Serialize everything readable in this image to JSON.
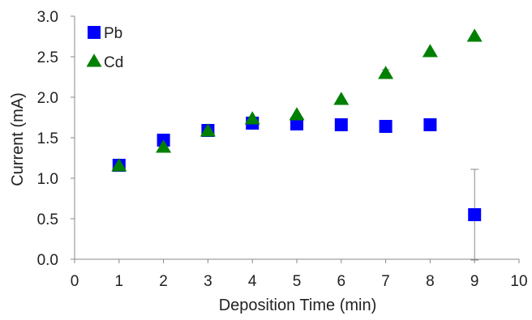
{
  "chart_data": {
    "type": "scatter",
    "xlabel": "Deposition Time (min)",
    "ylabel": "Current (mA)",
    "xlim": [
      0,
      10
    ],
    "ylim": [
      0,
      3.0
    ],
    "x_ticks": [
      "0",
      "1",
      "2",
      "3",
      "4",
      "5",
      "6",
      "7",
      "8",
      "9",
      "10"
    ],
    "y_ticks": [
      "0.0",
      "0.5",
      "1.0",
      "1.5",
      "2.0",
      "2.5",
      "3.0"
    ],
    "grid": false,
    "legend_position": "top-left",
    "series": [
      {
        "name": "Pb",
        "marker": "square",
        "color": "#0000ff",
        "x": [
          1,
          2,
          3,
          4,
          5,
          6,
          7,
          8,
          9
        ],
        "y": [
          1.16,
          1.47,
          1.59,
          1.68,
          1.67,
          1.66,
          1.64,
          1.66,
          0.55
        ],
        "error": [
          0,
          0,
          0,
          0,
          0,
          0,
          0,
          0,
          0.56
        ]
      },
      {
        "name": "Cd",
        "marker": "triangle",
        "color": "#008000",
        "x": [
          1,
          2,
          3,
          4,
          5,
          6,
          7,
          8,
          9
        ],
        "y": [
          1.15,
          1.38,
          1.58,
          1.73,
          1.78,
          1.97,
          2.29,
          2.56,
          2.75
        ],
        "error": [
          0,
          0,
          0,
          0,
          0,
          0,
          0.05,
          0,
          0
        ]
      }
    ]
  }
}
